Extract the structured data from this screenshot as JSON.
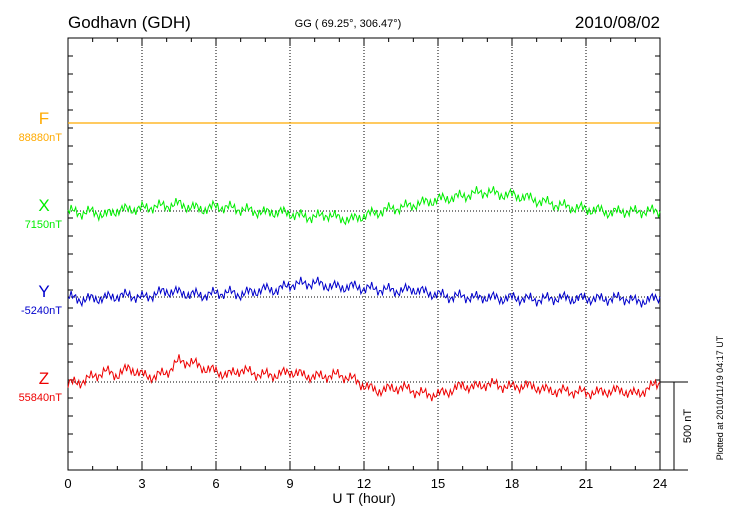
{
  "header": {
    "station": "Godhavn (GDH)",
    "coords": "GG ( 69.25°, 306.47°)",
    "date": "2010/08/02"
  },
  "side_note": "Plotted at 2010/11/19 04:17 UT",
  "scale_label": "500 nT",
  "colors": {
    "F": "#ffaa00",
    "X": "#00ee00",
    "Y": "#0000cc",
    "Z": "#ee0000",
    "axis": "#000000",
    "grid": "#000000"
  },
  "chart_data": {
    "type": "line",
    "xlabel": "U T (hour)",
    "xlim": [
      0,
      24
    ],
    "xticks": [
      "0",
      "3",
      "6",
      "9",
      "12",
      "15",
      "18",
      "21",
      "24"
    ],
    "x_minor_step_hours": 1,
    "grid": true,
    "units_per_scale_bar": 500,
    "series": [
      {
        "key": "F",
        "name": "F",
        "baseline_label": "88880nT",
        "baseline": 88880,
        "x": [
          0,
          24
        ],
        "y": [
          88880,
          88880
        ]
      },
      {
        "key": "X",
        "name": "X",
        "baseline_label": "7150nT",
        "baseline": 7150,
        "x": [
          0,
          0.5,
          1,
          1.5,
          2,
          2.5,
          3,
          3.5,
          4,
          4.5,
          5,
          5.5,
          6,
          6.5,
          7,
          7.5,
          8,
          8.5,
          9,
          9.5,
          10,
          10.5,
          11,
          11.5,
          12,
          12.5,
          13,
          13.5,
          14,
          14.5,
          15,
          15.5,
          16,
          16.5,
          17,
          17.5,
          18,
          18.5,
          19,
          19.5,
          20,
          20.5,
          21,
          21.5,
          22,
          22.5,
          23,
          23.5,
          24
        ],
        "y": [
          7150,
          7140,
          7145,
          7125,
          7155,
          7160,
          7165,
          7175,
          7180,
          7190,
          7170,
          7160,
          7175,
          7170,
          7160,
          7150,
          7140,
          7145,
          7135,
          7120,
          7115,
          7130,
          7110,
          7100,
          7125,
          7140,
          7160,
          7170,
          7185,
          7200,
          7215,
          7225,
          7235,
          7250,
          7260,
          7245,
          7240,
          7230,
          7210,
          7195,
          7180,
          7170,
          7160,
          7155,
          7140,
          7150,
          7145,
          7150,
          7148
        ]
      },
      {
        "key": "Y",
        "name": "Y",
        "baseline_label": "-5240nT",
        "baseline": -5240,
        "x": [
          0,
          0.5,
          1,
          1.5,
          2,
          2.5,
          3,
          3.5,
          4,
          4.5,
          5,
          5.5,
          6,
          6.5,
          7,
          7.5,
          8,
          8.5,
          9,
          9.5,
          10,
          10.5,
          11,
          11.5,
          12,
          12.5,
          13,
          13.5,
          14,
          14.5,
          15,
          15.5,
          16,
          16.5,
          17,
          17.5,
          18,
          18.5,
          19,
          19.5,
          20,
          20.5,
          21,
          21.5,
          22,
          22.5,
          23,
          23.5,
          24
        ],
        "y": [
          -5240,
          -5255,
          -5250,
          -5245,
          -5235,
          -5230,
          -5245,
          -5225,
          -5205,
          -5215,
          -5225,
          -5230,
          -5220,
          -5215,
          -5225,
          -5210,
          -5195,
          -5200,
          -5170,
          -5165,
          -5160,
          -5175,
          -5185,
          -5180,
          -5190,
          -5195,
          -5200,
          -5205,
          -5195,
          -5215,
          -5225,
          -5240,
          -5235,
          -5245,
          -5240,
          -5250,
          -5245,
          -5250,
          -5255,
          -5250,
          -5245,
          -5250,
          -5248,
          -5252,
          -5250,
          -5245,
          -5265,
          -5260,
          -5240
        ]
      },
      {
        "key": "Z",
        "name": "Z",
        "baseline_label": "55840nT",
        "baseline": 55840,
        "x": [
          0,
          0.5,
          1,
          1.5,
          2,
          2.5,
          3,
          3.5,
          4,
          4.5,
          5,
          5.5,
          6,
          6.5,
          7,
          7.5,
          8,
          8.5,
          9,
          9.5,
          10,
          10.5,
          11,
          11.5,
          12,
          12.5,
          13,
          13.5,
          14,
          14.5,
          15,
          15.5,
          16,
          16.5,
          17,
          17.5,
          18,
          18.5,
          19,
          19.5,
          20,
          20.5,
          21,
          21.5,
          22,
          22.5,
          23,
          23.5,
          24
        ],
        "y": [
          55830,
          55840,
          55870,
          55900,
          55880,
          55920,
          55880,
          55870,
          55895,
          55960,
          55950,
          55920,
          55900,
          55880,
          55910,
          55890,
          55880,
          55880,
          55900,
          55880,
          55870,
          55875,
          55880,
          55860,
          55820,
          55790,
          55800,
          55810,
          55790,
          55770,
          55770,
          55790,
          55820,
          55810,
          55830,
          55820,
          55810,
          55820,
          55810,
          55790,
          55790,
          55785,
          55780,
          55780,
          55790,
          55790,
          55770,
          55800,
          55840
        ]
      }
    ]
  }
}
